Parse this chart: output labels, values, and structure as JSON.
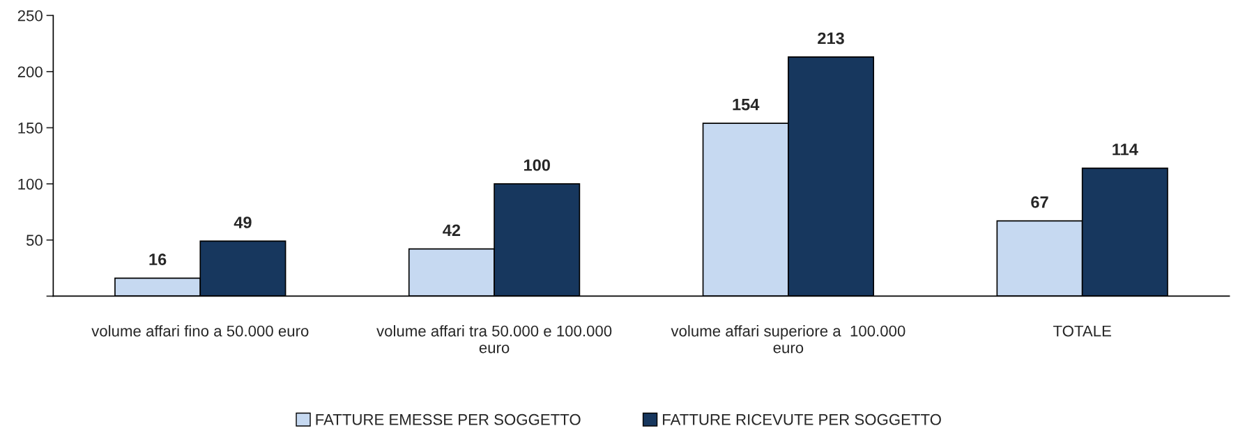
{
  "chart_data": {
    "type": "bar",
    "categories": [
      "volume affari fino a 50.000 euro",
      "volume affari tra 50.000 e 100.000\neuro",
      "volume affari superiore a  100.000\neuro",
      "TOTALE"
    ],
    "series": [
      {
        "name": "FATTURE EMESSE PER SOGGETTO",
        "color": "#c6d9f1",
        "values": [
          16,
          42,
          154,
          67
        ]
      },
      {
        "name": "FATTURE RICEVUTE PER SOGGETTO",
        "color": "#17375e",
        "values": [
          49,
          100,
          213,
          114
        ]
      }
    ],
    "ylim": [
      0,
      250
    ],
    "yticks": [
      {
        "value": 0,
        "label": null
      },
      50,
      100,
      150,
      200,
      250
    ],
    "data_labels": true,
    "grid": false,
    "legend": "bottom"
  }
}
